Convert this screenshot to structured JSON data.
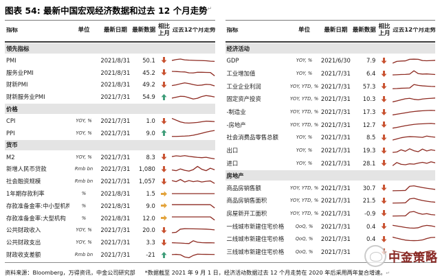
{
  "page": {
    "title_prefix": "图表 54:",
    "title": "最新中国宏观经济数据和过去 12 个月走势",
    "title_mark": "↵"
  },
  "columns": {
    "indicator": "指标",
    "unit": "单位",
    "date": "最新日期",
    "value": "最新数据",
    "mom": "相比上月",
    "trend": "过去12个月走势"
  },
  "colors": {
    "up": "#3d9c78",
    "down": "#c8502e",
    "flat": "#e3a33b",
    "spark": "#8d2a21",
    "band": "#e4e4e4"
  },
  "tables": [
    {
      "id": "left",
      "sections": [
        {
          "name": "领先指标",
          "rows": [
            {
              "indicator": "PMI",
              "unit": "",
              "date": "2021/8/31",
              "value": "50.1",
              "mom": "down",
              "spark": [
                50,
                62,
                70,
                58,
                54,
                52,
                50,
                48,
                46,
                40,
                38
              ]
            },
            {
              "indicator": "服务业PMI",
              "unit": "",
              "date": "2021/8/31",
              "value": "45.2",
              "mom": "down",
              "spark": [
                70,
                68,
                64,
                62,
                50,
                48,
                58,
                57,
                56,
                54,
                8
              ]
            },
            {
              "indicator": "财新PMI",
              "unit": "",
              "date": "2021/8/31",
              "value": "49.2",
              "mom": "down",
              "spark": [
                35,
                45,
                60,
                72,
                62,
                48,
                38,
                42,
                52,
                48,
                30
              ]
            },
            {
              "indicator": "财新服务业PMI",
              "unit": "",
              "date": "2021/7/31",
              "value": "54.9",
              "mom": "up",
              "spark": [
                32,
                45,
                58,
                55,
                38,
                20,
                30,
                55,
                68,
                60,
                48
              ]
            }
          ]
        },
        {
          "name": "价格",
          "rows": [
            {
              "indicator": "CPI",
              "unit": "YOY, %",
              "date": "2021/7/31",
              "value": "1.0",
              "mom": "down",
              "spark": [
                85,
                60,
                35,
                22,
                20,
                24,
                28,
                38,
                46,
                44,
                40
              ]
            },
            {
              "indicator": "PPI",
              "unit": "YOY, %",
              "date": "2021/7/31",
              "value": "9.0",
              "mom": "up",
              "spark": [
                6,
                6,
                8,
                10,
                14,
                22,
                35,
                50,
                65,
                78,
                88
              ]
            }
          ]
        },
        {
          "name": "货币",
          "rows": [
            {
              "indicator": "M2",
              "unit": "YOY, %",
              "date": "2021/7/31",
              "value": "8.3",
              "mom": "down",
              "spark": [
                60,
                70,
                64,
                72,
                62,
                55,
                48,
                44,
                50,
                38,
                28
              ]
            },
            {
              "indicator": "新增人民币贷款",
              "unit": "Rmb bn",
              "date": "2021/7/31",
              "value": "1,080",
              "mom": "down",
              "spark": [
                35,
                25,
                50,
                30,
                20,
                40,
                85,
                45,
                25,
                60,
                38
              ]
            },
            {
              "indicator": "社会融资规模",
              "unit": "Rmb bn",
              "date": "2021/7/31",
              "value": "1,057",
              "mom": "down",
              "spark": [
                60,
                45,
                75,
                40,
                60,
                45,
                55,
                40,
                50,
                55,
                20
              ]
            },
            {
              "indicator": "1年期存款利率",
              "unit": "%",
              "date": "2021/8/31",
              "value": "1.5",
              "mom": "flat",
              "spark": [
                50,
                50,
                50,
                50,
                50,
                50,
                50,
                50,
                50,
                50,
                50
              ]
            },
            {
              "indicator": "存款准备金率:中小型机构",
              "unit": "%",
              "date": "2021/8/31",
              "value": "9.0",
              "mom": "flat",
              "spark": [
                68,
                68,
                68,
                68,
                68,
                68,
                68,
                68,
                68,
                68,
                22
              ]
            },
            {
              "indicator": "存款准备金率:大型机构",
              "unit": "%",
              "date": "2021/8/31",
              "value": "12.0",
              "mom": "flat",
              "spark": [
                70,
                70,
                70,
                70,
                70,
                70,
                70,
                70,
                70,
                70,
                25
              ]
            },
            {
              "indicator": "公共财政收入",
              "unit": "YOY, %",
              "date": "2021/7/31",
              "value": "20.0",
              "mom": "down",
              "spark": [
                12,
                18,
                62,
                68,
                67,
                66,
                65,
                64,
                62,
                58,
                52
              ]
            },
            {
              "indicator": "公共财政支出",
              "unit": "YOY, %",
              "date": "2021/7/31",
              "value": "3.3",
              "mom": "down",
              "spark": [
                45,
                43,
                40,
                36,
                34,
                72,
                52,
                46,
                44,
                45,
                43
              ]
            },
            {
              "indicator": "财政收支差额",
              "unit": "Rmb bn",
              "date": "2021/7/31",
              "value": "-21",
              "mom": "up",
              "spark": [
                52,
                55,
                50,
                18,
                8,
                40,
                58,
                56,
                55,
                54,
                53
              ]
            }
          ]
        }
      ]
    },
    {
      "id": "right",
      "sections": [
        {
          "name": "经济活动",
          "rows": [
            {
              "indicator": "GDP",
              "unit": "YOY, %",
              "date": "2021/6/30",
              "value": "7.9",
              "mom": "down",
              "spark": [
                12,
                38,
                42,
                44,
                66,
                68,
                66,
                48,
                46,
                48,
                52
              ]
            },
            {
              "indicator": "工业增加值",
              "unit": "YOY, %",
              "date": "2021/7/31",
              "value": "6.4",
              "mom": "down",
              "spark": [
                30,
                33,
                36,
                38,
                42,
                88,
                48,
                42,
                44,
                40,
                36
              ]
            },
            {
              "indicator": "工业企业利润",
              "unit": "YOY, YTD, %",
              "date": "2021/7/31",
              "value": "57.3",
              "mom": "down",
              "spark": [
                20,
                22,
                26,
                28,
                30,
                78,
                66,
                60,
                56,
                52,
                50
              ]
            },
            {
              "indicator": "固定资产投资",
              "unit": "YOY, YTD, %",
              "date": "2021/7/31",
              "value": "10.3",
              "mom": "down",
              "spark": [
                8,
                22,
                38,
                52,
                58,
                44,
                38,
                48,
                54,
                58,
                62
              ]
            },
            {
              "indicator": "-制造业",
              "unit": "YOY, YTD, %",
              "date": "2021/7/31",
              "value": "17.3",
              "mom": "down",
              "spark": [
                8,
                18,
                28,
                38,
                48,
                56,
                62,
                66,
                70,
                72,
                70
              ]
            },
            {
              "indicator": "-房地产",
              "unit": "YOY, YTD, %",
              "date": "2021/7/31",
              "value": "12.7",
              "mom": "down",
              "spark": [
                6,
                16,
                28,
                40,
                50,
                58,
                64,
                66,
                70,
                72,
                66
              ]
            },
            {
              "indicator": "社会消费品零售总额",
              "unit": "YOY, %",
              "date": "2021/7/31",
              "value": "8.5",
              "mom": "down",
              "spark": [
                12,
                28,
                44,
                54,
                60,
                58,
                54,
                50,
                68,
                58,
                52
              ]
            },
            {
              "indicator": "出口",
              "unit": "YOY, %",
              "date": "2021/7/31",
              "value": "19.3",
              "mom": "down",
              "spark": [
                22,
                28,
                58,
                38,
                72,
                45,
                32,
                68,
                42,
                58,
                48
              ]
            },
            {
              "indicator": "进口",
              "unit": "YOY, %",
              "date": "2021/7/31",
              "value": "28.1",
              "mom": "down",
              "spark": [
                18,
                62,
                38,
                32,
                44,
                40,
                55,
                65,
                52,
                72,
                58
              ]
            }
          ]
        },
        {
          "name": "房地产",
          "rows": [
            {
              "indicator": "商品房销售额",
              "unit": "YOY, YTD, %",
              "date": "2021/7/31",
              "value": "30.7",
              "mom": "down",
              "spark": [
                14,
                15,
                16,
                18,
                76,
                82,
                70,
                58,
                48,
                40,
                32
              ]
            },
            {
              "indicator": "商品房销售面积",
              "unit": "YOY, YTD, %",
              "date": "2021/7/31",
              "value": "21.5",
              "mom": "down",
              "spark": [
                14,
                15,
                16,
                18,
                72,
                80,
                64,
                50,
                40,
                32,
                26
              ]
            },
            {
              "indicator": "房屋新开工面积",
              "unit": "YOY, YTD, %",
              "date": "2021/7/31",
              "value": "-0.9",
              "mom": "down",
              "spark": [
                15,
                16,
                17,
                18,
                70,
                78,
                55,
                40,
                48,
                35,
                30
              ]
            },
            {
              "indicator": "一线城市新建住宅价格",
              "unit": "QoQ, %",
              "date": "2021/7/31",
              "value": "0.4",
              "mom": "down",
              "spark": [
                68,
                58,
                48,
                38,
                30,
                28,
                34,
                56,
                66,
                60,
                48
              ]
            },
            {
              "indicator": "二线城市新建住宅价格",
              "unit": "QoQ, %",
              "date": "2021/7/31",
              "value": "0.4",
              "mom": "down",
              "spark": [
                75,
                60,
                46,
                34,
                28,
                26,
                28,
                36,
                56,
                70,
                72
              ]
            },
            {
              "indicator": "三线城市新建住宅价格",
              "unit": "QoQ, %",
              "date": "2021/7/31",
              "value": "",
              "mom": "down",
              "spark": [
                70,
                56,
                44,
                36,
                30,
                28,
                32,
                42,
                56,
                66,
                58
              ]
            }
          ]
        }
      ]
    }
  ],
  "footer": {
    "source": "资料来源：Bloomberg，万得资讯，中金公司研究部",
    "note": "*数据截至 2021 年 9 月 1 日，经济活动数据过去 12 个月走势在 2020 年后采用两年复合增速。",
    "mark": "↵"
  },
  "watermark": {
    "text": "中金策略"
  }
}
